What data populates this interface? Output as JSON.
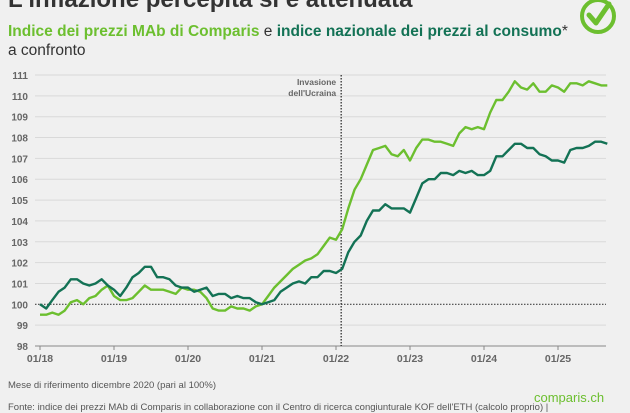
{
  "header": {
    "title": "L'inflazione percepita sì è attenuata",
    "subtitle_part1": "Indice dei prezzi MAb di Comparis",
    "subtitle_join": " e ",
    "subtitle_part2": "indice nazionale dei prezzi al consumo",
    "subtitle_tail": "* a confronto"
  },
  "footer": {
    "note": "Mese di riferimento dicembre 2020 (pari al 100%)",
    "source": "Fonte: indice dei prezzi MAb di Comparis in collaborazione con il Centro di ricerca congiunturale KOF dell'ETH (calcolo proprio) |",
    "brand": "comparis.ch"
  },
  "colors": {
    "mab": "#6cbf2f",
    "ipc": "#137255",
    "grid": "#d9d9d9",
    "axis_text": "#666666"
  },
  "icons": {
    "logo": "check-circle-icon"
  },
  "chart_data": {
    "type": "line",
    "title": "Indice dei prezzi MAb di Comparis e indice nazionale dei prezzi al consumo* a confronto",
    "xlabel": "",
    "ylabel": "",
    "x_start": "2018-01",
    "x_frequency": "monthly",
    "x_ticks": [
      "01/18",
      "01/19",
      "01/20",
      "01/21",
      "01/22",
      "01/23",
      "01/24",
      "01/25"
    ],
    "y_ticks": [
      98,
      99,
      100,
      101,
      102,
      103,
      104,
      105,
      106,
      107,
      108,
      109,
      110,
      111
    ],
    "ylim": [
      98,
      111
    ],
    "grid": true,
    "reference_line": {
      "y": 100,
      "style": "dotted"
    },
    "annotation": {
      "x": "2022-02",
      "label_line1": "Invasione",
      "label_line2": "dell'Ucraina",
      "style": "dotted-vertical"
    },
    "series": [
      {
        "name": "Indice dei prezzi MAb di Comparis",
        "color": "#6cbf2f",
        "values": [
          99.5,
          99.5,
          99.6,
          99.5,
          99.7,
          100.1,
          100.2,
          100.0,
          100.3,
          100.4,
          100.7,
          100.9,
          100.4,
          100.2,
          100.2,
          100.3,
          100.6,
          100.9,
          100.7,
          100.7,
          100.7,
          100.6,
          100.5,
          100.8,
          100.7,
          100.7,
          100.6,
          100.3,
          99.8,
          99.7,
          99.7,
          99.9,
          99.8,
          99.8,
          99.7,
          99.9,
          100.0,
          100.4,
          100.8,
          101.1,
          101.4,
          101.7,
          101.9,
          102.1,
          102.2,
          102.4,
          102.8,
          103.2,
          103.1,
          103.6,
          104.6,
          105.5,
          106.0,
          106.7,
          107.4,
          107.5,
          107.6,
          107.2,
          107.1,
          107.4,
          106.9,
          107.5,
          107.9,
          107.9,
          107.8,
          107.8,
          107.7,
          107.6,
          108.2,
          108.5,
          108.4,
          108.5,
          108.4,
          109.2,
          109.8,
          109.8,
          110.2,
          110.7,
          110.4,
          110.3,
          110.6,
          110.2,
          110.2,
          110.5,
          110.4,
          110.2,
          110.6,
          110.6,
          110.5,
          110.7,
          110.6,
          110.5,
          110.5
        ]
      },
      {
        "name": "Indice nazionale dei prezzi al consumo*",
        "color": "#137255",
        "values": [
          100.0,
          99.8,
          100.2,
          100.6,
          100.8,
          101.2,
          101.2,
          101.0,
          100.9,
          101.0,
          101.2,
          100.9,
          100.7,
          100.4,
          100.8,
          101.3,
          101.5,
          101.8,
          101.8,
          101.3,
          101.3,
          101.2,
          100.9,
          100.8,
          100.8,
          100.6,
          100.7,
          100.8,
          100.4,
          100.5,
          100.5,
          100.3,
          100.4,
          100.3,
          100.3,
          100.1,
          100.0,
          100.1,
          100.2,
          100.6,
          100.8,
          101.0,
          101.1,
          101.0,
          101.3,
          101.3,
          101.6,
          101.6,
          101.5,
          101.7,
          102.5,
          103.0,
          103.3,
          104.0,
          104.5,
          104.5,
          104.8,
          104.6,
          104.6,
          104.6,
          104.4,
          105.1,
          105.8,
          106.0,
          106.0,
          106.3,
          106.3,
          106.2,
          106.4,
          106.3,
          106.4,
          106.2,
          106.2,
          106.4,
          107.1,
          107.1,
          107.4,
          107.7,
          107.7,
          107.5,
          107.5,
          107.2,
          107.1,
          106.9,
          106.9,
          106.8,
          107.4,
          107.5,
          107.5,
          107.6,
          107.8,
          107.8,
          107.7
        ]
      }
    ]
  }
}
